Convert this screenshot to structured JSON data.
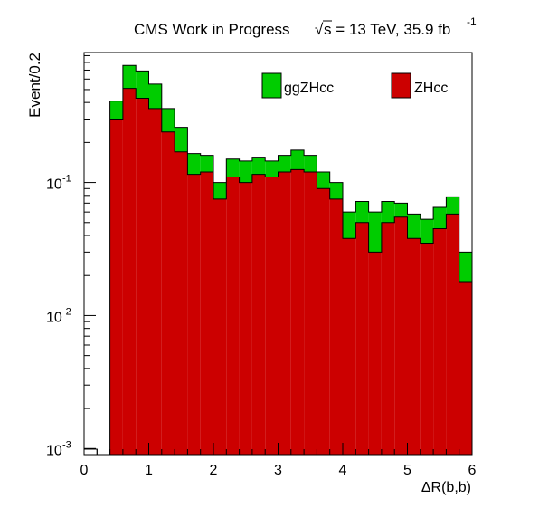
{
  "chart_data": {
    "type": "bar",
    "stacked": true,
    "title": "CMS Work in Progress",
    "title_energy": "s = 13 TeV, 35.9 fb",
    "title_energy_exponent": "-1",
    "sqrt_symbol": "√",
    "xlabel": "ΔR(b,b)",
    "ylabel": "Event/0.2",
    "xlim": [
      0,
      6
    ],
    "ylim": [
      0.0009,
      0.95
    ],
    "y_scale": "log",
    "x_ticks": [
      {
        "value": 0,
        "label": "0"
      },
      {
        "value": 1,
        "label": "1"
      },
      {
        "value": 2,
        "label": "2"
      },
      {
        "value": 3,
        "label": "3"
      },
      {
        "value": 4,
        "label": "4"
      },
      {
        "value": 5,
        "label": "5"
      },
      {
        "value": 6,
        "label": "6"
      }
    ],
    "y_ticks": [
      {
        "value": 0.001,
        "base": "10",
        "exp": "-3"
      },
      {
        "value": 0.01,
        "base": "10",
        "exp": "-2"
      },
      {
        "value": 0.1,
        "base": "10",
        "exp": "-1"
      }
    ],
    "bin_width": 0.2,
    "x_start": 0.4,
    "legend_position": "top",
    "series": [
      {
        "name": "ZHcc",
        "color": "#cc0000",
        "values": [
          0.3,
          0.51,
          0.43,
          0.36,
          0.24,
          0.17,
          0.115,
          0.12,
          0.075,
          0.11,
          0.1,
          0.115,
          0.11,
          0.12,
          0.125,
          0.12,
          0.09,
          0.075,
          0.038,
          0.05,
          0.03,
          0.05,
          0.055,
          0.038,
          0.035,
          0.045,
          0.058,
          0.018
        ]
      },
      {
        "name": "ggZHcc",
        "color": "#00cc00",
        "values": [
          0.11,
          0.25,
          0.26,
          0.19,
          0.12,
          0.09,
          0.05,
          0.04,
          0.025,
          0.04,
          0.045,
          0.04,
          0.035,
          0.04,
          0.05,
          0.04,
          0.03,
          0.025,
          0.022,
          0.022,
          0.03,
          0.022,
          0.015,
          0.02,
          0.018,
          0.02,
          0.02,
          0.012
        ]
      }
    ]
  }
}
